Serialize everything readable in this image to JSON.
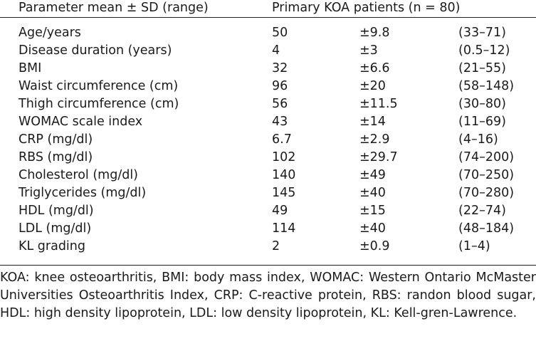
{
  "table": {
    "headers": {
      "parameter": "Parameter mean ± SD (range)",
      "patients": "Primary KOA patients (n = 80)"
    },
    "rows": [
      {
        "parameter": "Age/years",
        "mean": "50",
        "sd": "±9.8",
        "range": "(33–71)"
      },
      {
        "parameter": "Disease duration (years)",
        "mean": "4",
        "sd": "±3",
        "range": "(0.5–12)"
      },
      {
        "parameter": "BMI",
        "mean": "32",
        "sd": "±6.6",
        "range": "(21–55)"
      },
      {
        "parameter": "Waist circumference (cm)",
        "mean": "96",
        "sd": "±20",
        "range": "(58–148)"
      },
      {
        "parameter": "Thigh circumference (cm)",
        "mean": "56",
        "sd": "±11.5",
        "range": "(30–80)"
      },
      {
        "parameter": "WOMAC scale index",
        "mean": "43",
        "sd": "±14",
        "range": "(11–69)"
      },
      {
        "parameter": "CRP (mg/dl)",
        "mean": "6.7",
        "sd": "±2.9",
        "range": "(4–16)"
      },
      {
        "parameter": "RBS (mg/dl)",
        "mean": "102",
        "sd": "±29.7",
        "range": "(74–200)"
      },
      {
        "parameter": "Cholesterol (mg/dl)",
        "mean": "140",
        "sd": "±49",
        "range": "(70–250)"
      },
      {
        "parameter": "Triglycerides (mg/dl)",
        "mean": "145",
        "sd": "±40",
        "range": "(70–280)"
      },
      {
        "parameter": "HDL (mg/dl)",
        "mean": "49",
        "sd": "±15",
        "range": "(22–74)"
      },
      {
        "parameter": "LDL (mg/dl)",
        "mean": "114",
        "sd": "±40",
        "range": "(48–184)"
      },
      {
        "parameter": "KL grading",
        "mean": "2",
        "sd": "±0.9",
        "range": "(1–4)"
      }
    ]
  },
  "footnote": "KOA: knee osteoarthritis, BMI: body mass index, WOMAC: Western Ontario McMaster Universities Osteoarthritis Index, CRP: C-reactive protein, RBS: randon blood sugar, HDL: high density lipoprotein, LDL: low density lipoprotein, KL: Kell-gren-Lawrence."
}
